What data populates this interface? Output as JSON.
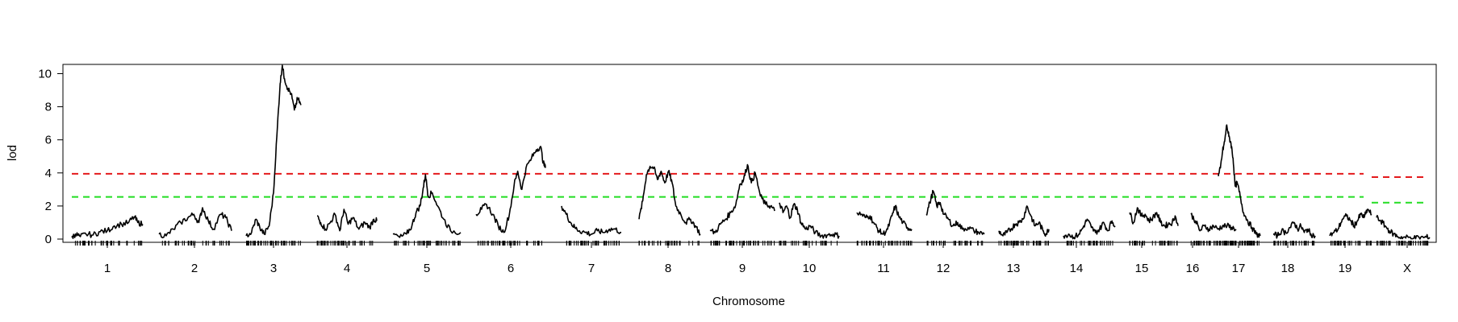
{
  "chart_data": {
    "type": "line",
    "xlabel": "Chromosome",
    "ylabel": "lod",
    "ylim": [
      0,
      10.6
    ],
    "yticks": [
      0,
      2,
      4,
      6,
      8,
      10
    ],
    "grid": false,
    "legend": "none",
    "chromosomes": [
      {
        "name": "1",
        "profile": [
          [
            0,
            0.1
          ],
          [
            0.05,
            0.3
          ],
          [
            0.12,
            0.15
          ],
          [
            0.2,
            0.3
          ],
          [
            0.3,
            0.25
          ],
          [
            0.4,
            0.45
          ],
          [
            0.5,
            0.5
          ],
          [
            0.6,
            0.8
          ],
          [
            0.7,
            0.9
          ],
          [
            0.8,
            1.0
          ],
          [
            0.88,
            1.35
          ],
          [
            0.93,
            1.0
          ],
          [
            1.0,
            0.9
          ]
        ]
      },
      {
        "name": "2",
        "profile": [
          [
            0,
            0.3
          ],
          [
            0.1,
            0.2
          ],
          [
            0.2,
            0.6
          ],
          [
            0.3,
            1.0
          ],
          [
            0.4,
            1.3
          ],
          [
            0.48,
            1.5
          ],
          [
            0.55,
            1.0
          ],
          [
            0.6,
            1.9
          ],
          [
            0.68,
            1.1
          ],
          [
            0.75,
            0.6
          ],
          [
            0.85,
            1.5
          ],
          [
            0.92,
            1.3
          ],
          [
            1.0,
            0.5
          ]
        ]
      },
      {
        "name": "3",
        "profile": [
          [
            0,
            0.2
          ],
          [
            0.1,
            0.4
          ],
          [
            0.18,
            1.2
          ],
          [
            0.25,
            0.7
          ],
          [
            0.33,
            0.3
          ],
          [
            0.42,
            0.8
          ],
          [
            0.5,
            2.8
          ],
          [
            0.56,
            6.2
          ],
          [
            0.62,
            9.4
          ],
          [
            0.66,
            10.5
          ],
          [
            0.7,
            9.7
          ],
          [
            0.76,
            9.1
          ],
          [
            0.82,
            8.8
          ],
          [
            0.88,
            7.8
          ],
          [
            0.94,
            8.5
          ],
          [
            1.0,
            8.1
          ]
        ]
      },
      {
        "name": "4",
        "profile": [
          [
            0,
            1.4
          ],
          [
            0.06,
            1.0
          ],
          [
            0.14,
            0.6
          ],
          [
            0.22,
            1.0
          ],
          [
            0.3,
            1.5
          ],
          [
            0.38,
            0.5
          ],
          [
            0.45,
            1.8
          ],
          [
            0.52,
            0.9
          ],
          [
            0.6,
            1.3
          ],
          [
            0.7,
            0.6
          ],
          [
            0.8,
            1.0
          ],
          [
            0.88,
            0.7
          ],
          [
            0.95,
            1.2
          ],
          [
            1.0,
            1.1
          ]
        ]
      },
      {
        "name": "5",
        "profile": [
          [
            0,
            0.3
          ],
          [
            0.1,
            0.1
          ],
          [
            0.2,
            0.3
          ],
          [
            0.28,
            0.8
          ],
          [
            0.34,
            1.6
          ],
          [
            0.4,
            2.0
          ],
          [
            0.44,
            2.9
          ],
          [
            0.48,
            3.9
          ],
          [
            0.52,
            2.6
          ],
          [
            0.58,
            2.8
          ],
          [
            0.66,
            2.0
          ],
          [
            0.75,
            1.2
          ],
          [
            0.85,
            0.5
          ],
          [
            1.0,
            0.4
          ]
        ]
      },
      {
        "name": "6",
        "profile": [
          [
            0,
            1.5
          ],
          [
            0.08,
            1.8
          ],
          [
            0.15,
            2.1
          ],
          [
            0.24,
            1.5
          ],
          [
            0.32,
            0.8
          ],
          [
            0.4,
            0.4
          ],
          [
            0.48,
            1.5
          ],
          [
            0.55,
            3.3
          ],
          [
            0.6,
            4.1
          ],
          [
            0.66,
            3.0
          ],
          [
            0.72,
            4.3
          ],
          [
            0.8,
            4.9
          ],
          [
            0.87,
            5.4
          ],
          [
            0.93,
            5.6
          ],
          [
            0.97,
            4.6
          ],
          [
            1.0,
            4.3
          ]
        ]
      },
      {
        "name": "7",
        "profile": [
          [
            0,
            2.0
          ],
          [
            0.08,
            1.5
          ],
          [
            0.15,
            1.0
          ],
          [
            0.22,
            0.7
          ],
          [
            0.3,
            0.5
          ],
          [
            0.4,
            0.4
          ],
          [
            0.5,
            0.3
          ],
          [
            0.6,
            0.5
          ],
          [
            0.7,
            0.4
          ],
          [
            0.8,
            0.6
          ],
          [
            0.9,
            0.6
          ],
          [
            1.0,
            0.4
          ]
        ]
      },
      {
        "name": "8",
        "profile": [
          [
            0,
            1.2
          ],
          [
            0.06,
            2.3
          ],
          [
            0.12,
            3.9
          ],
          [
            0.18,
            4.4
          ],
          [
            0.24,
            4.3
          ],
          [
            0.3,
            3.6
          ],
          [
            0.36,
            4.1
          ],
          [
            0.42,
            3.4
          ],
          [
            0.48,
            4.1
          ],
          [
            0.54,
            3.4
          ],
          [
            0.6,
            2.0
          ],
          [
            0.68,
            1.5
          ],
          [
            0.76,
            1.0
          ],
          [
            0.84,
            1.2
          ],
          [
            0.92,
            0.8
          ],
          [
            1.0,
            0.3
          ]
        ]
      },
      {
        "name": "9",
        "profile": [
          [
            0,
            0.5
          ],
          [
            0.08,
            0.4
          ],
          [
            0.16,
            0.9
          ],
          [
            0.24,
            1.2
          ],
          [
            0.32,
            1.6
          ],
          [
            0.4,
            2.1
          ],
          [
            0.46,
            3.3
          ],
          [
            0.52,
            3.6
          ],
          [
            0.58,
            4.5
          ],
          [
            0.64,
            3.4
          ],
          [
            0.7,
            4.0
          ],
          [
            0.78,
            2.6
          ],
          [
            0.86,
            2.1
          ],
          [
            0.94,
            2.0
          ],
          [
            1.0,
            1.7
          ]
        ]
      },
      {
        "name": "10",
        "profile": [
          [
            0,
            2.2
          ],
          [
            0.06,
            1.6
          ],
          [
            0.12,
            2.0
          ],
          [
            0.18,
            1.3
          ],
          [
            0.24,
            2.1
          ],
          [
            0.3,
            1.8
          ],
          [
            0.36,
            1.0
          ],
          [
            0.44,
            0.6
          ],
          [
            0.52,
            0.8
          ],
          [
            0.6,
            0.4
          ],
          [
            0.7,
            0.2
          ],
          [
            0.8,
            0.25
          ],
          [
            0.9,
            0.3
          ],
          [
            1.0,
            0.2
          ]
        ]
      },
      {
        "name": "11",
        "profile": [
          [
            0,
            1.6
          ],
          [
            0.08,
            1.5
          ],
          [
            0.16,
            1.3
          ],
          [
            0.24,
            1.4
          ],
          [
            0.32,
            0.9
          ],
          [
            0.4,
            0.5
          ],
          [
            0.48,
            0.3
          ],
          [
            0.56,
            0.6
          ],
          [
            0.64,
            1.4
          ],
          [
            0.7,
            2.0
          ],
          [
            0.76,
            1.4
          ],
          [
            0.84,
            1.0
          ],
          [
            0.92,
            0.7
          ],
          [
            1.0,
            0.6
          ]
        ]
      },
      {
        "name": "12",
        "profile": [
          [
            0,
            1.5
          ],
          [
            0.06,
            2.2
          ],
          [
            0.12,
            2.9
          ],
          [
            0.18,
            2.0
          ],
          [
            0.24,
            2.2
          ],
          [
            0.3,
            1.5
          ],
          [
            0.38,
            1.2
          ],
          [
            0.46,
            0.8
          ],
          [
            0.54,
            1.0
          ],
          [
            0.62,
            0.6
          ],
          [
            0.72,
            0.7
          ],
          [
            0.82,
            0.5
          ],
          [
            0.9,
            0.4
          ],
          [
            1.0,
            0.3
          ]
        ]
      },
      {
        "name": "13",
        "profile": [
          [
            0,
            0.5
          ],
          [
            0.08,
            0.2
          ],
          [
            0.16,
            0.4
          ],
          [
            0.24,
            0.6
          ],
          [
            0.32,
            0.9
          ],
          [
            0.4,
            1.0
          ],
          [
            0.48,
            1.2
          ],
          [
            0.56,
            2.0
          ],
          [
            0.64,
            1.4
          ],
          [
            0.72,
            0.8
          ],
          [
            0.8,
            1.0
          ],
          [
            0.88,
            0.5
          ],
          [
            0.94,
            0.3
          ],
          [
            1.0,
            0.6
          ]
        ]
      },
      {
        "name": "14",
        "profile": [
          [
            0,
            0.2
          ],
          [
            0.1,
            0.3
          ],
          [
            0.2,
            0.1
          ],
          [
            0.3,
            0.3
          ],
          [
            0.38,
            0.7
          ],
          [
            0.46,
            1.2
          ],
          [
            0.54,
            0.7
          ],
          [
            0.62,
            0.4
          ],
          [
            0.7,
            0.6
          ],
          [
            0.78,
            1.0
          ],
          [
            0.86,
            0.5
          ],
          [
            0.94,
            1.1
          ],
          [
            1.0,
            0.8
          ]
        ]
      },
      {
        "name": "15",
        "profile": [
          [
            0,
            1.6
          ],
          [
            0.08,
            1.0
          ],
          [
            0.16,
            1.9
          ],
          [
            0.24,
            1.4
          ],
          [
            0.32,
            1.5
          ],
          [
            0.4,
            1.1
          ],
          [
            0.48,
            1.3
          ],
          [
            0.56,
            1.6
          ],
          [
            0.64,
            1.0
          ],
          [
            0.72,
            0.8
          ],
          [
            0.8,
            0.9
          ],
          [
            0.88,
            1.0
          ],
          [
            0.94,
            1.4
          ],
          [
            1.0,
            0.8
          ]
        ]
      },
      {
        "name": "16",
        "profile": [
          [
            0,
            1.5
          ],
          [
            0.1,
            1.1
          ],
          [
            0.2,
            0.5
          ],
          [
            0.3,
            0.8
          ],
          [
            0.4,
            0.6
          ],
          [
            0.5,
            0.8
          ],
          [
            0.6,
            0.6
          ],
          [
            0.7,
            0.8
          ],
          [
            0.8,
            0.8
          ],
          [
            0.9,
            0.7
          ],
          [
            1.0,
            0.6
          ]
        ]
      },
      {
        "name": "17",
        "profile": [
          [
            0,
            3.8
          ],
          [
            0.05,
            4.3
          ],
          [
            0.1,
            5.3
          ],
          [
            0.15,
            5.9
          ],
          [
            0.2,
            6.9
          ],
          [
            0.25,
            6.2
          ],
          [
            0.3,
            5.8
          ],
          [
            0.35,
            4.9
          ],
          [
            0.4,
            3.2
          ],
          [
            0.45,
            3.4
          ],
          [
            0.52,
            2.6
          ],
          [
            0.6,
            1.6
          ],
          [
            0.7,
            1.1
          ],
          [
            0.8,
            0.7
          ],
          [
            0.9,
            0.3
          ],
          [
            1.0,
            0.2
          ]
        ]
      },
      {
        "name": "18",
        "profile": [
          [
            0,
            0.3
          ],
          [
            0.1,
            0.2
          ],
          [
            0.2,
            0.5
          ],
          [
            0.3,
            0.4
          ],
          [
            0.4,
            0.7
          ],
          [
            0.5,
            1.0
          ],
          [
            0.58,
            0.6
          ],
          [
            0.66,
            0.8
          ],
          [
            0.74,
            0.4
          ],
          [
            0.82,
            0.6
          ],
          [
            0.9,
            0.3
          ],
          [
            1.0,
            0.2
          ]
        ]
      },
      {
        "name": "19",
        "profile": [
          [
            0,
            0.2
          ],
          [
            0.1,
            0.4
          ],
          [
            0.2,
            0.6
          ],
          [
            0.3,
            1.2
          ],
          [
            0.4,
            1.4
          ],
          [
            0.5,
            1.1
          ],
          [
            0.58,
            0.8
          ],
          [
            0.66,
            1.1
          ],
          [
            0.74,
            1.5
          ],
          [
            0.82,
            1.3
          ],
          [
            0.9,
            1.8
          ],
          [
            1.0,
            1.5
          ]
        ]
      },
      {
        "name": "X",
        "profile": [
          [
            0,
            1.3
          ],
          [
            0.08,
            1.1
          ],
          [
            0.16,
            0.8
          ],
          [
            0.24,
            0.5
          ],
          [
            0.32,
            0.3
          ],
          [
            0.4,
            0.15
          ],
          [
            0.5,
            0.1
          ],
          [
            0.6,
            0.1
          ],
          [
            0.7,
            0.05
          ],
          [
            0.8,
            0.1
          ],
          [
            0.9,
            0.1
          ],
          [
            1.0,
            0.1
          ]
        ]
      }
    ],
    "thresholds": [
      {
        "color": "#e41a1c",
        "autosome": 3.95,
        "x": 3.75
      },
      {
        "color": "#22dd22",
        "autosome": 2.55,
        "x": 2.2
      }
    ],
    "line_color": "#000000"
  }
}
